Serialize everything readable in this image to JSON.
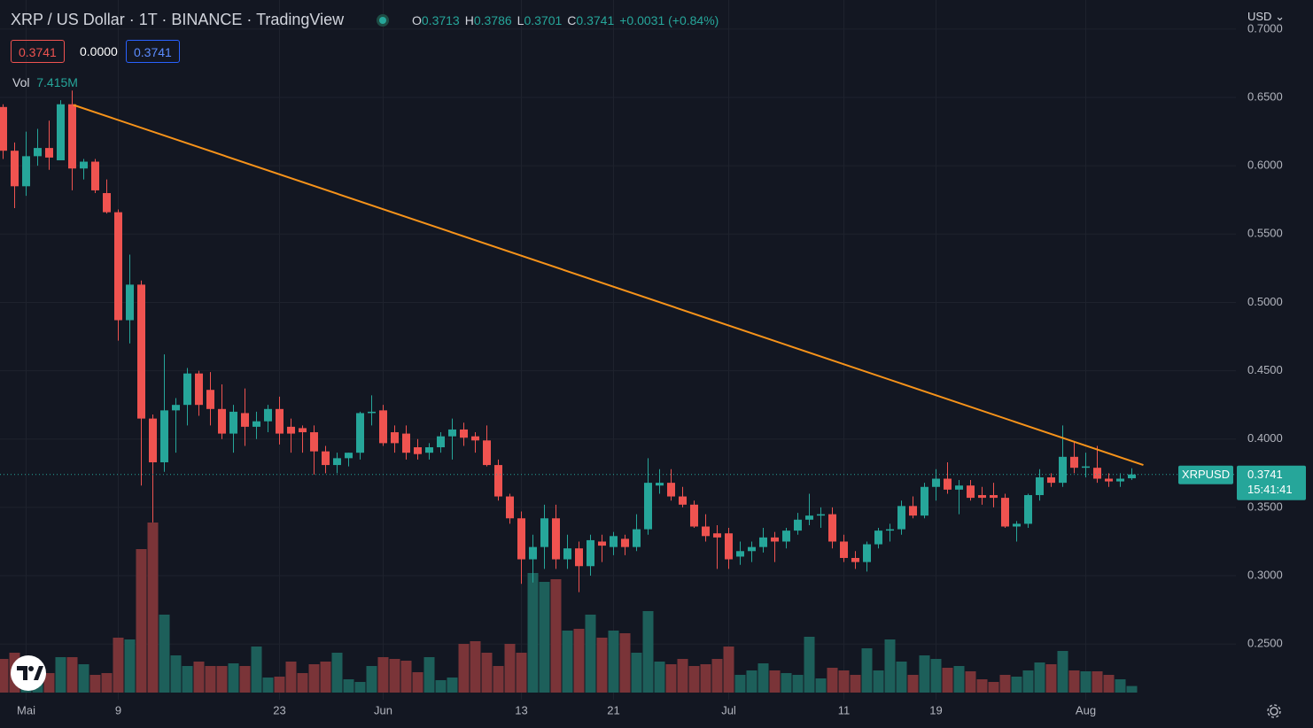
{
  "header": {
    "title": "XRP / US Dollar · 1T · BINANCE · TradingView",
    "ohlc": [
      {
        "label": "O",
        "value": "0.3713"
      },
      {
        "label": "H",
        "value": "0.3786"
      },
      {
        "label": "L",
        "value": "0.3701"
      },
      {
        "label": "C",
        "value": "0.3741"
      }
    ],
    "change": "+0.0031 (+0.84%)",
    "bid": "0.3741",
    "spread": "0.0000",
    "ask": "0.3741",
    "volume_label": "Vol",
    "volume_value": "7.415M",
    "currency": "USD",
    "symbol_label": "XRPUSD",
    "last_price": "0.3741",
    "countdown": "15:41:41"
  },
  "chart_data": {
    "type": "candlestick",
    "categories": [
      null,
      null,
      "Mai",
      null,
      null,
      null,
      null,
      null,
      null,
      null,
      "9",
      null,
      null,
      null,
      null,
      null,
      null,
      null,
      null,
      null,
      null,
      null,
      null,
      null,
      "23",
      null,
      null,
      null,
      null,
      null,
      null,
      null,
      null,
      "Jun",
      null,
      null,
      null,
      null,
      null,
      null,
      null,
      null,
      null,
      null,
      null,
      "13",
      null,
      null,
      null,
      null,
      null,
      null,
      null,
      "21",
      null,
      null,
      null,
      null,
      null,
      null,
      null,
      null,
      null,
      "Jul",
      null,
      null,
      null,
      null,
      null,
      null,
      null,
      null,
      null,
      "11",
      null,
      null,
      null,
      null,
      null,
      null,
      null,
      "19",
      null,
      null,
      null,
      null,
      null,
      null,
      null,
      null,
      null,
      null,
      null,
      null,
      "Aug",
      null,
      null,
      null,
      null
    ],
    "open": [
      0.643,
      0.611,
      0.585,
      0.607,
      0.613,
      0.604,
      0.645,
      0.598,
      0.603,
      0.58,
      0.566,
      0.487,
      0.513,
      0.415,
      0.383,
      0.421,
      0.425,
      0.448,
      0.436,
      0.422,
      0.404,
      0.419,
      0.409,
      0.413,
      0.422,
      0.409,
      0.408,
      0.405,
      0.391,
      0.381,
      0.386,
      0.39,
      0.419,
      0.421,
      0.405,
      0.404,
      0.394,
      0.39,
      0.394,
      0.402,
      0.407,
      0.402,
      0.399,
      0.381,
      0.358,
      0.342,
      0.312,
      0.321,
      0.342,
      0.312,
      0.32,
      0.307,
      0.325,
      0.321,
      0.327,
      0.321,
      0.334,
      0.366,
      0.368,
      0.358,
      0.352,
      0.336,
      0.331,
      0.331,
      0.314,
      0.318,
      0.321,
      0.328,
      0.325,
      0.333,
      0.341,
      0.344,
      0.345,
      0.325,
      0.313,
      0.31,
      0.323,
      0.333,
      0.334,
      0.351,
      0.344,
      0.365,
      0.371,
      0.363,
      0.366,
      0.359,
      0.359,
      0.357,
      0.336,
      0.338,
      0.359,
      0.372,
      0.368,
      0.387,
      0.379,
      0.379,
      0.371,
      0.369,
      0.3713
    ],
    "high": [
      0.645,
      0.617,
      0.625,
      0.627,
      0.633,
      0.648,
      0.655,
      0.605,
      0.605,
      0.59,
      0.568,
      0.535,
      0.516,
      0.418,
      0.462,
      0.43,
      0.452,
      0.45,
      0.449,
      0.44,
      0.425,
      0.437,
      0.42,
      0.425,
      0.431,
      0.415,
      0.41,
      0.41,
      0.395,
      0.39,
      0.39,
      0.42,
      0.432,
      0.425,
      0.41,
      0.41,
      0.4,
      0.397,
      0.405,
      0.415,
      0.412,
      0.405,
      0.41,
      0.385,
      0.36,
      0.347,
      0.33,
      0.352,
      0.352,
      0.33,
      0.325,
      0.33,
      0.33,
      0.332,
      0.33,
      0.345,
      0.386,
      0.378,
      0.378,
      0.365,
      0.355,
      0.345,
      0.337,
      0.335,
      0.325,
      0.325,
      0.335,
      0.332,
      0.335,
      0.346,
      0.36,
      0.35,
      0.35,
      0.33,
      0.318,
      0.325,
      0.335,
      0.338,
      0.355,
      0.358,
      0.368,
      0.378,
      0.383,
      0.37,
      0.37,
      0.365,
      0.368,
      0.36,
      0.34,
      0.36,
      0.378,
      0.375,
      0.41,
      0.398,
      0.39,
      0.395,
      0.375,
      0.375,
      0.3786
    ],
    "low": [
      0.605,
      0.569,
      0.578,
      0.6,
      0.597,
      0.604,
      0.582,
      0.59,
      0.58,
      0.565,
      0.472,
      0.47,
      0.366,
      0.339,
      0.376,
      0.39,
      0.41,
      0.417,
      0.41,
      0.4,
      0.39,
      0.395,
      0.4,
      0.405,
      0.396,
      0.39,
      0.39,
      0.374,
      0.375,
      0.375,
      0.38,
      0.385,
      0.41,
      0.395,
      0.39,
      0.385,
      0.385,
      0.385,
      0.39,
      0.385,
      0.395,
      0.39,
      0.38,
      0.355,
      0.338,
      0.294,
      0.295,
      0.305,
      0.305,
      0.305,
      0.288,
      0.3,
      0.31,
      0.315,
      0.315,
      0.318,
      0.33,
      0.36,
      0.355,
      0.35,
      0.335,
      0.325,
      0.305,
      0.305,
      0.308,
      0.31,
      0.317,
      0.31,
      0.32,
      0.33,
      0.337,
      0.335,
      0.32,
      0.31,
      0.305,
      0.303,
      0.32,
      0.325,
      0.33,
      0.342,
      0.342,
      0.355,
      0.36,
      0.345,
      0.355,
      0.352,
      0.35,
      0.335,
      0.325,
      0.335,
      0.355,
      0.365,
      0.365,
      0.375,
      0.372,
      0.368,
      0.365,
      0.365,
      0.3701
    ],
    "close": [
      0.611,
      0.585,
      0.607,
      0.613,
      0.606,
      0.645,
      0.598,
      0.603,
      0.582,
      0.566,
      0.487,
      0.513,
      0.415,
      0.383,
      0.421,
      0.425,
      0.448,
      0.425,
      0.422,
      0.404,
      0.42,
      0.409,
      0.413,
      0.422,
      0.404,
      0.404,
      0.405,
      0.391,
      0.381,
      0.386,
      0.39,
      0.419,
      0.42,
      0.397,
      0.397,
      0.39,
      0.389,
      0.394,
      0.402,
      0.407,
      0.401,
      0.399,
      0.381,
      0.358,
      0.342,
      0.312,
      0.321,
      0.342,
      0.312,
      0.32,
      0.307,
      0.326,
      0.322,
      0.329,
      0.321,
      0.334,
      0.368,
      0.368,
      0.358,
      0.352,
      0.336,
      0.329,
      0.328,
      0.312,
      0.318,
      0.321,
      0.328,
      0.325,
      0.333,
      0.341,
      0.344,
      0.345,
      0.325,
      0.313,
      0.31,
      0.323,
      0.333,
      0.334,
      0.351,
      0.344,
      0.365,
      0.371,
      0.363,
      0.366,
      0.357,
      0.357,
      0.357,
      0.336,
      0.338,
      0.359,
      0.372,
      0.368,
      0.387,
      0.379,
      0.38,
      0.371,
      0.369,
      0.371,
      0.3741
    ],
    "volume": [
      38,
      45,
      30,
      25,
      22,
      40,
      40,
      32,
      20,
      22,
      62,
      60,
      162,
      192,
      88,
      42,
      30,
      35,
      30,
      30,
      33,
      30,
      52,
      17,
      18,
      35,
      22,
      32,
      35,
      45,
      15,
      12,
      30,
      40,
      38,
      36,
      23,
      40,
      14,
      17,
      55,
      58,
      45,
      30,
      55,
      45,
      135,
      125,
      128,
      70,
      72,
      88,
      62,
      70,
      67,
      45,
      92,
      35,
      32,
      38,
      30,
      32,
      38,
      52,
      20,
      25,
      33,
      25,
      22,
      20,
      63,
      16,
      28,
      25,
      20,
      50,
      25,
      60,
      35,
      20,
      42,
      38,
      28,
      30,
      24,
      15,
      12,
      20,
      18,
      25,
      34,
      32,
      47,
      25,
      24,
      24,
      20,
      15,
      7.415
    ],
    "up_color": "#26a69a",
    "down_color": "#ef5350",
    "up_volume_color": "#1d5f5a",
    "down_volume_color": "#7a3438",
    "ylim": [
      0.2093,
      0.7213
    ],
    "volume_lim": [
      0,
      210
    ],
    "yticks": [
      {
        "value": 0.25,
        "label": "0.2500"
      },
      {
        "value": 0.3,
        "label": "0.3000"
      },
      {
        "value": 0.35,
        "label": "0.3500"
      },
      {
        "value": 0.4,
        "label": "0.4000"
      },
      {
        "value": 0.45,
        "label": "0.4500"
      },
      {
        "value": 0.5,
        "label": "0.5000"
      },
      {
        "value": 0.55,
        "label": "0.5500"
      },
      {
        "value": 0.6,
        "label": "0.6000"
      },
      {
        "value": 0.65,
        "label": "0.6500"
      },
      {
        "value": 0.7,
        "label": "0.7000"
      }
    ],
    "grid": true,
    "trendline": {
      "x": [
        6.1,
        99
      ],
      "values": [
        0.6445,
        0.381
      ],
      "color": "#f7931a"
    }
  }
}
